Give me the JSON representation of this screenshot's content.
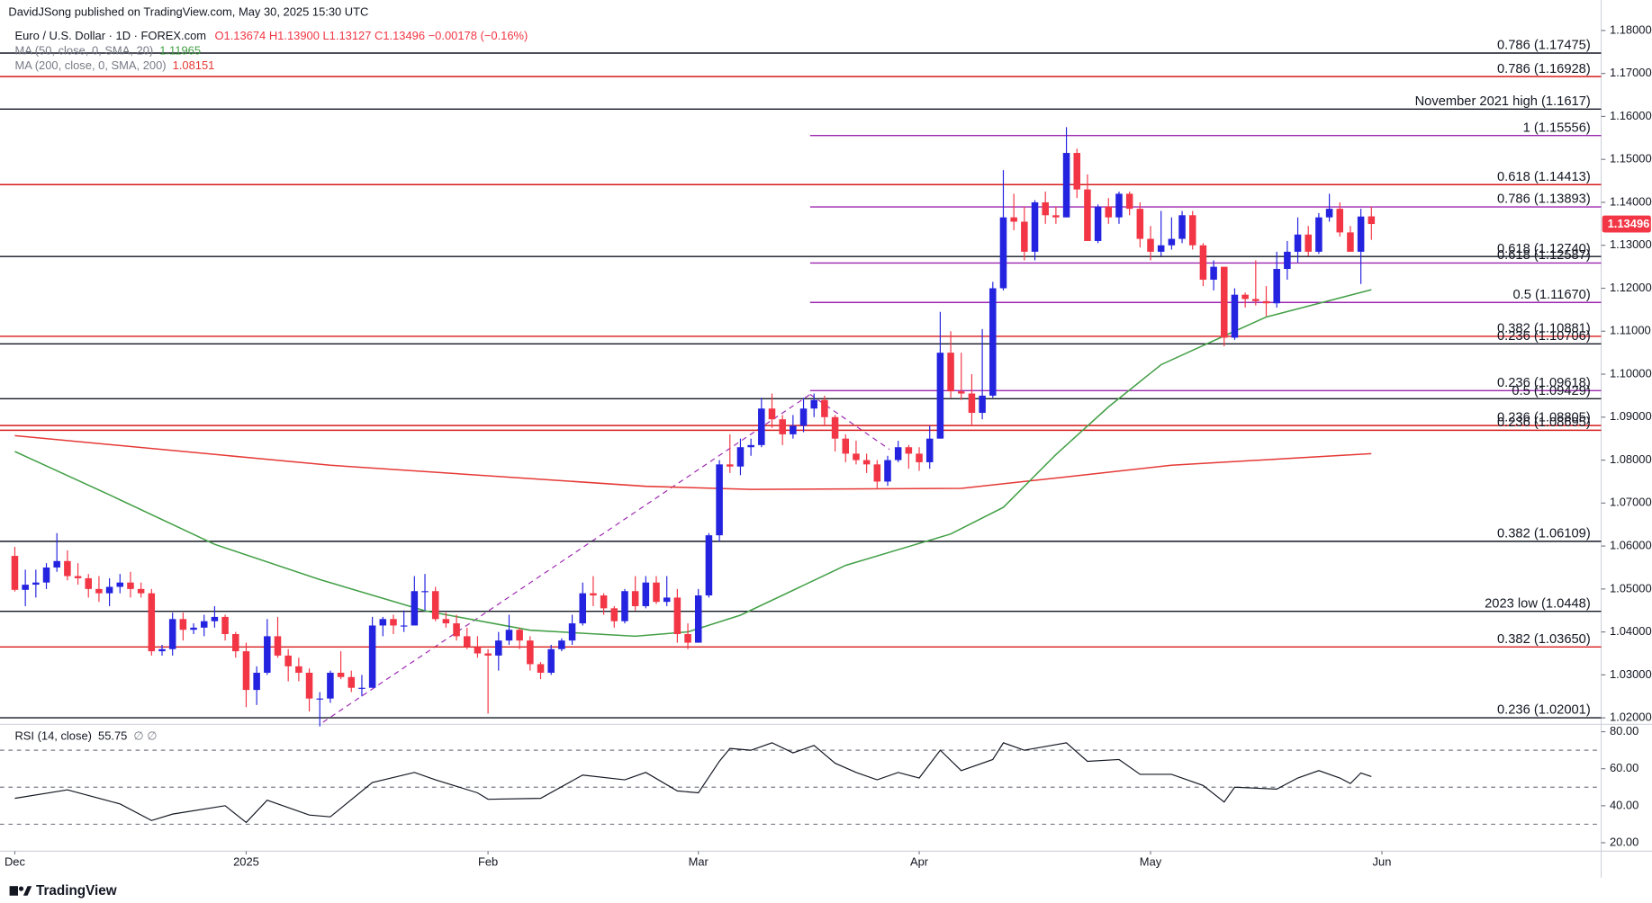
{
  "header": {
    "publisher": "DavidJSong published on TradingView.com, May 30, 2025 15:30 UTC",
    "symbol": "Euro / U.S. Dollar · 1D · FOREX.com",
    "ohlc": "O1.13674 H1.13900 L1.13127 C1.13496 −0.00178 (−0.16%)",
    "footer": "TradingView"
  },
  "chart_data": {
    "type": "candlestick",
    "up_color": "#2424e0",
    "down_color": "#f23645",
    "xlim": [
      -1.41,
      150.85
    ],
    "ylim": [
      1.0185,
      1.1871
    ],
    "xticks": [
      {
        "value": 0,
        "label": "Dec"
      },
      {
        "value": 22,
        "label": "2025"
      },
      {
        "value": 45,
        "label": "Feb"
      },
      {
        "value": 65,
        "label": "Mar"
      },
      {
        "value": 86,
        "label": "Apr"
      },
      {
        "value": 108,
        "label": "May"
      },
      {
        "value": 130,
        "label": "Jun"
      }
    ],
    "yticks": [
      {
        "value": 1.02,
        "label": "1.02000"
      },
      {
        "value": 1.03,
        "label": "1.03000"
      },
      {
        "value": 1.04,
        "label": "1.04000"
      },
      {
        "value": 1.05,
        "label": "1.05000"
      },
      {
        "value": 1.06,
        "label": "1.06000"
      },
      {
        "value": 1.07,
        "label": "1.07000"
      },
      {
        "value": 1.08,
        "label": "1.08000"
      },
      {
        "value": 1.09,
        "label": "1.09000"
      },
      {
        "value": 1.1,
        "label": "1.10000"
      },
      {
        "value": 1.11,
        "label": "1.11000"
      },
      {
        "value": 1.12,
        "label": "1.12000"
      },
      {
        "value": 1.13,
        "label": "1.13000"
      },
      {
        "value": 1.14,
        "label": "1.14000"
      },
      {
        "value": 1.15,
        "label": "1.15000"
      },
      {
        "value": 1.16,
        "label": "1.16000"
      },
      {
        "value": 1.17,
        "label": "1.17000"
      },
      {
        "value": 1.18,
        "label": "1.18000"
      }
    ],
    "candles": [
      [
        1.0577,
        1.0598,
        1.0494,
        1.0498
      ],
      [
        1.0498,
        1.0545,
        1.046,
        1.051
      ],
      [
        1.051,
        1.0545,
        1.048,
        1.0515
      ],
      [
        1.0515,
        1.056,
        1.05,
        1.055
      ],
      [
        1.055,
        1.063,
        1.054,
        1.0565
      ],
      [
        1.0565,
        1.059,
        1.052,
        1.053
      ],
      [
        1.053,
        1.056,
        1.051,
        1.0525
      ],
      [
        1.0525,
        1.0535,
        1.048,
        1.05
      ],
      [
        1.05,
        1.053,
        1.047,
        1.049
      ],
      [
        1.049,
        1.0525,
        1.046,
        1.0505
      ],
      [
        1.0505,
        1.0535,
        1.049,
        1.0515
      ],
      [
        1.0515,
        1.054,
        1.048,
        1.05
      ],
      [
        1.05,
        1.0515,
        1.048,
        1.049
      ],
      [
        1.049,
        1.05,
        1.0345,
        1.0355
      ],
      [
        1.0355,
        1.037,
        1.0345,
        1.036
      ],
      [
        1.036,
        1.0445,
        1.0345,
        1.043
      ],
      [
        1.043,
        1.0445,
        1.038,
        1.0405
      ],
      [
        1.0405,
        1.042,
        1.0395,
        1.041
      ],
      [
        1.041,
        1.044,
        1.039,
        1.0425
      ],
      [
        1.0425,
        1.046,
        1.041,
        1.0435
      ],
      [
        1.0435,
        1.044,
        1.038,
        1.0395
      ],
      [
        1.0395,
        1.04,
        1.034,
        1.0355
      ],
      [
        1.0355,
        1.0375,
        1.0225,
        1.0265
      ],
      [
        1.0265,
        1.032,
        1.023,
        1.0305
      ],
      [
        1.0305,
        1.043,
        1.03,
        1.039
      ],
      [
        1.039,
        1.0435,
        1.034,
        1.0345
      ],
      [
        1.0345,
        1.036,
        1.0285,
        1.032
      ],
      [
        1.032,
        1.034,
        1.0285,
        1.0305
      ],
      [
        1.0305,
        1.0315,
        1.0215,
        1.0245
      ],
      [
        1.0245,
        1.026,
        1.018,
        1.0245
      ],
      [
        1.0245,
        1.031,
        1.0235,
        1.0305
      ],
      [
        1.0305,
        1.0355,
        1.029,
        1.0295
      ],
      [
        1.0295,
        1.031,
        1.026,
        1.027
      ],
      [
        1.027,
        1.03,
        1.025,
        1.027
      ],
      [
        1.027,
        1.0435,
        1.027,
        1.0415
      ],
      [
        1.0415,
        1.0435,
        1.039,
        1.043
      ],
      [
        1.043,
        1.044,
        1.0395,
        1.0415
      ],
      [
        1.0415,
        1.045,
        1.04,
        1.0415
      ],
      [
        1.0415,
        1.053,
        1.0415,
        1.0495
      ],
      [
        1.0495,
        1.0535,
        1.045,
        1.0495
      ],
      [
        1.0495,
        1.0505,
        1.0425,
        1.043
      ],
      [
        1.043,
        1.0445,
        1.041,
        1.042
      ],
      [
        1.042,
        1.044,
        1.038,
        1.039
      ],
      [
        1.039,
        1.041,
        1.036,
        1.0365
      ],
      [
        1.0365,
        1.039,
        1.034,
        1.035
      ],
      [
        1.035,
        1.036,
        1.021,
        1.0345
      ],
      [
        1.0345,
        1.04,
        1.031,
        1.038
      ],
      [
        1.038,
        1.044,
        1.037,
        1.0405
      ],
      [
        1.0405,
        1.041,
        1.036,
        1.038
      ],
      [
        1.038,
        1.039,
        1.031,
        1.0325
      ],
      [
        1.0325,
        1.033,
        1.029,
        1.0305
      ],
      [
        1.0305,
        1.037,
        1.03,
        1.036
      ],
      [
        1.036,
        1.0385,
        1.0355,
        1.038
      ],
      [
        1.038,
        1.044,
        1.037,
        1.042
      ],
      [
        1.042,
        1.0515,
        1.0415,
        1.049
      ],
      [
        1.049,
        1.053,
        1.046,
        1.0485
      ],
      [
        1.0485,
        1.049,
        1.044,
        1.0455
      ],
      [
        1.0455,
        1.046,
        1.041,
        1.0425
      ],
      [
        1.0425,
        1.05,
        1.042,
        1.0495
      ],
      [
        1.0495,
        1.053,
        1.045,
        1.046
      ],
      [
        1.046,
        1.053,
        1.0455,
        1.0515
      ],
      [
        1.0515,
        1.053,
        1.0465,
        1.047
      ],
      [
        1.047,
        1.053,
        1.046,
        1.048
      ],
      [
        1.048,
        1.05,
        1.0375,
        1.0395
      ],
      [
        1.0395,
        1.042,
        1.036,
        1.0375
      ],
      [
        1.0375,
        1.05,
        1.0375,
        1.0485
      ],
      [
        1.0485,
        1.063,
        1.048,
        1.0625
      ],
      [
        1.0625,
        1.08,
        1.061,
        1.079
      ],
      [
        1.079,
        1.086,
        1.077,
        1.0785
      ],
      [
        1.0785,
        1.085,
        1.0765,
        1.083
      ],
      [
        1.083,
        1.085,
        1.081,
        1.0835
      ],
      [
        1.0835,
        1.0945,
        1.083,
        1.092
      ],
      [
        1.092,
        1.0955,
        1.0875,
        1.0895
      ],
      [
        1.0895,
        1.0905,
        1.0835,
        1.086
      ],
      [
        1.086,
        1.0905,
        1.085,
        1.088
      ],
      [
        1.088,
        1.0945,
        1.0865,
        1.092
      ],
      [
        1.092,
        1.0955,
        1.09,
        1.094
      ],
      [
        1.094,
        1.095,
        1.088,
        1.09
      ],
      [
        1.09,
        1.0905,
        1.082,
        1.085
      ],
      [
        1.085,
        1.086,
        1.0795,
        1.0815
      ],
      [
        1.0815,
        1.0845,
        1.079,
        1.08
      ],
      [
        1.08,
        1.0815,
        1.077,
        1.079
      ],
      [
        1.079,
        1.08,
        1.0735,
        1.075
      ],
      [
        1.075,
        1.081,
        1.074,
        1.08
      ],
      [
        1.08,
        1.0845,
        1.0795,
        1.083
      ],
      [
        1.083,
        1.0835,
        1.078,
        1.0815
      ],
      [
        1.0815,
        1.083,
        1.0775,
        1.0795
      ],
      [
        1.0795,
        1.088,
        1.078,
        1.085
      ],
      [
        1.085,
        1.1145,
        1.085,
        1.105
      ],
      [
        1.105,
        1.11,
        1.0945,
        1.096
      ],
      [
        1.096,
        1.105,
        1.094,
        1.0955
      ],
      [
        1.0955,
        1.1,
        1.088,
        1.091
      ],
      [
        1.091,
        1.1105,
        1.0895,
        1.095
      ],
      [
        1.095,
        1.1215,
        1.0945,
        1.12
      ],
      [
        1.12,
        1.1475,
        1.1195,
        1.1365
      ],
      [
        1.1365,
        1.142,
        1.1335,
        1.1355
      ],
      [
        1.1355,
        1.139,
        1.1265,
        1.1285
      ],
      [
        1.1285,
        1.1405,
        1.1265,
        1.14
      ],
      [
        1.14,
        1.1425,
        1.135,
        1.137
      ],
      [
        1.137,
        1.139,
        1.135,
        1.1365
      ],
      [
        1.1365,
        1.1575,
        1.1365,
        1.1515
      ],
      [
        1.1515,
        1.1525,
        1.141,
        1.143
      ],
      [
        1.143,
        1.1465,
        1.131,
        1.131
      ],
      [
        1.131,
        1.1395,
        1.1305,
        1.139
      ],
      [
        1.139,
        1.141,
        1.135,
        1.1365
      ],
      [
        1.1365,
        1.1425,
        1.135,
        1.142
      ],
      [
        1.142,
        1.1425,
        1.137,
        1.1385
      ],
      [
        1.1385,
        1.14,
        1.1295,
        1.1315
      ],
      [
        1.1315,
        1.1345,
        1.1265,
        1.1285
      ],
      [
        1.1285,
        1.138,
        1.1275,
        1.13
      ],
      [
        1.13,
        1.1365,
        1.129,
        1.1315
      ],
      [
        1.1315,
        1.138,
        1.1305,
        1.137
      ],
      [
        1.137,
        1.138,
        1.129,
        1.13
      ],
      [
        1.13,
        1.1305,
        1.1205,
        1.122
      ],
      [
        1.122,
        1.1265,
        1.1195,
        1.125
      ],
      [
        1.125,
        1.125,
        1.1065,
        1.1085
      ],
      [
        1.1085,
        1.12,
        1.108,
        1.1185
      ],
      [
        1.1185,
        1.119,
        1.1155,
        1.1175
      ],
      [
        1.1175,
        1.1265,
        1.116,
        1.117
      ],
      [
        1.117,
        1.1205,
        1.1135,
        1.1165
      ],
      [
        1.1165,
        1.1285,
        1.1155,
        1.1245
      ],
      [
        1.1245,
        1.131,
        1.122,
        1.1285
      ],
      [
        1.1285,
        1.1365,
        1.126,
        1.1325
      ],
      [
        1.1325,
        1.1345,
        1.1275,
        1.1285
      ],
      [
        1.1285,
        1.1375,
        1.128,
        1.1365
      ],
      [
        1.1365,
        1.142,
        1.1355,
        1.1385
      ],
      [
        1.1385,
        1.14,
        1.132,
        1.133
      ],
      [
        1.133,
        1.1345,
        1.1285,
        1.1285
      ],
      [
        1.1285,
        1.1385,
        1.121,
        1.1367
      ],
      [
        1.13674,
        1.139,
        1.13127,
        1.13496
      ]
    ],
    "ma50": {
      "name": "MA (50, close, 0, SMA, 20)",
      "color": "#43a047",
      "x": [
        0,
        9,
        19,
        29,
        39,
        49,
        59,
        64,
        69,
        79,
        89,
        94,
        99,
        104,
        109,
        115,
        119,
        129
      ],
      "values": [
        1.082,
        1.0719,
        1.0604,
        1.0522,
        1.0449,
        1.0404,
        1.039,
        1.04,
        1.0439,
        1.0555,
        1.0628,
        1.069,
        1.0813,
        1.0924,
        1.1022,
        1.1089,
        1.1133,
        1.11965
      ]
    },
    "ma200": {
      "name": "MA (200, close, 0, SMA, 200)",
      "color": "#e53935",
      "x": [
        0,
        30,
        60,
        70,
        90,
        100,
        110,
        129
      ],
      "values": [
        1.0857,
        1.0788,
        1.0739,
        1.0732,
        1.0734,
        1.0761,
        1.0788,
        1.08151
      ]
    },
    "levels": [
      {
        "value": 1.17475,
        "label": "0.786 (1.17475)",
        "color": "#131722"
      },
      {
        "value": 1.16928,
        "label": "0.786 (1.16928)",
        "color": "#d81b1b"
      },
      {
        "value": 1.1617,
        "label": "November 2021 high (1.1617)",
        "color": "#131722"
      },
      {
        "value": 1.15556,
        "label": "1 (1.15556)",
        "color": "#9c27b0"
      },
      {
        "value": 1.14413,
        "label": "0.618 (1.14413)",
        "color": "#d81b1b"
      },
      {
        "value": 1.13893,
        "label": "0.786 (1.13893)",
        "color": "#9c27b0"
      },
      {
        "value": 1.1274,
        "label": "0.618 (1.12740)",
        "color": "#131722"
      },
      {
        "value": 1.12587,
        "label": "0.618 (1.12587)",
        "color": "#9c27b0"
      },
      {
        "value": 1.1167,
        "label": "0.5 (1.11670)",
        "color": "#9c27b0"
      },
      {
        "value": 1.10881,
        "label": "0.382 (1.10881)",
        "color": "#d81b1b"
      },
      {
        "value": 1.10706,
        "label": "0.236 (1.10706)",
        "color": "#131722"
      },
      {
        "value": 1.09618,
        "label": "0.236 (1.09618)",
        "color": "#9c27b0"
      },
      {
        "value": 1.09429,
        "label": "0.5 (1.09429)",
        "color": "#131722"
      },
      {
        "value": 1.08805,
        "label": "0.236 (1.08805)",
        "color": "#d81b1b"
      },
      {
        "value": 1.08695,
        "label": "0.236 (1.08695)",
        "color": "#d81b1b"
      },
      {
        "value": 1.06109,
        "label": "0.382 (1.06109)",
        "color": "#131722"
      },
      {
        "value": 1.0448,
        "label": "2023 low (1.0448)",
        "color": "#131722"
      },
      {
        "value": 1.0365,
        "label": "0.382 (1.03650)",
        "color": "#d81b1b"
      },
      {
        "value": 1.02001,
        "label": "0.236 (1.02001)",
        "color": "#131722"
      }
    ],
    "rsi": {
      "name": "RSI (14, close)",
      "suffix": "∅ ∅",
      "color": "#131722",
      "ylim": [
        15.43,
        84
      ],
      "yticks": [
        {
          "value": 20,
          "label": "20.00"
        },
        {
          "value": 40,
          "label": "40.00"
        },
        {
          "value": 60,
          "label": "60.00"
        },
        {
          "value": 80,
          "label": "80.00"
        }
      ],
      "bands": [
        70,
        50,
        30
      ],
      "x": [
        0,
        5,
        10,
        13,
        15,
        20,
        22,
        24,
        28,
        30,
        34,
        38,
        40,
        44,
        45,
        50,
        54,
        58,
        60,
        63,
        65,
        67,
        68,
        70,
        72,
        74,
        76,
        78,
        80,
        82,
        84,
        86,
        88,
        90,
        93,
        94,
        96,
        100,
        102,
        105,
        107,
        110,
        113,
        115,
        116,
        120,
        122,
        124,
        126,
        127,
        128,
        129
      ],
      "values": [
        44,
        48.6,
        41,
        32,
        35.5,
        40,
        31,
        43,
        35,
        34,
        52.5,
        58,
        54,
        47,
        43.5,
        44,
        56.6,
        54,
        58,
        48,
        47,
        64,
        71,
        70,
        74,
        68.6,
        72.6,
        63,
        58,
        54,
        58,
        55,
        70,
        59,
        65,
        74,
        70,
        74,
        64,
        65,
        57,
        57,
        51,
        42,
        50,
        49,
        55,
        59,
        55,
        52,
        57.7,
        55.75
      ]
    }
  }
}
